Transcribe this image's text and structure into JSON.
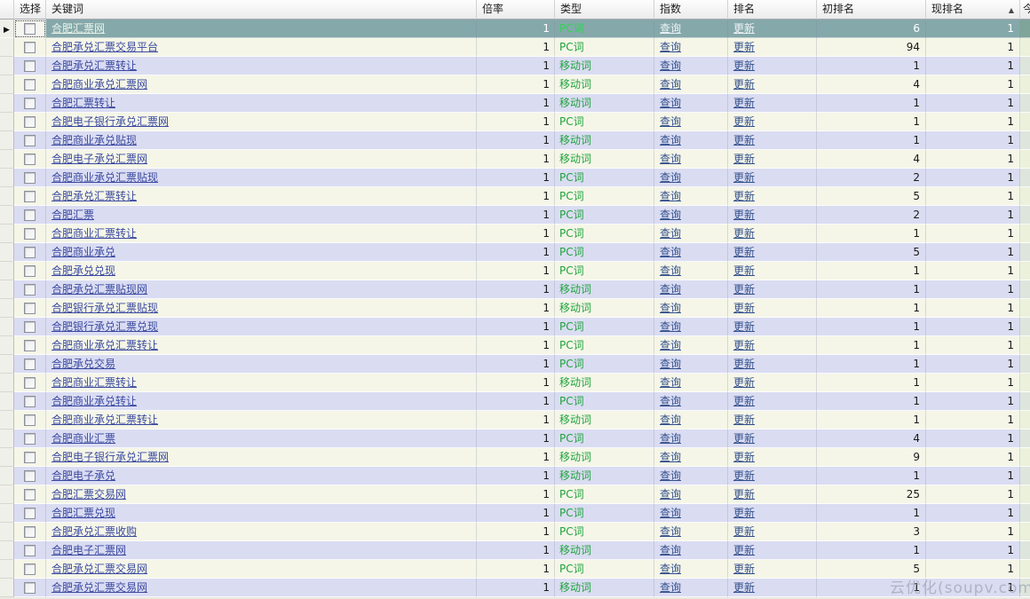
{
  "table": {
    "columns": [
      {
        "key": "select",
        "label": "选择"
      },
      {
        "key": "keyword",
        "label": "关键词"
      },
      {
        "key": "rate",
        "label": "倍率"
      },
      {
        "key": "type",
        "label": "类型"
      },
      {
        "key": "index",
        "label": "指数"
      },
      {
        "key": "rank",
        "label": "排名"
      },
      {
        "key": "init_rank",
        "label": "初排名"
      },
      {
        "key": "cur_rank",
        "label": "现排名"
      },
      {
        "key": "today",
        "label": "今"
      }
    ],
    "sort": {
      "column": "现排名",
      "direction": "ascending",
      "icon": "▲"
    },
    "row_indicator_icon": "▶",
    "rows": [
      {
        "selected": true,
        "keyword": "合肥汇票网",
        "rate": "1",
        "type": "PC词",
        "index_link": "查询",
        "rank_link": "更新",
        "init_rank": "6",
        "cur_rank": "1"
      },
      {
        "selected": false,
        "keyword": "合肥承兑汇票交易平台",
        "rate": "1",
        "type": "PC词",
        "index_link": "查询",
        "rank_link": "更新",
        "init_rank": "94",
        "cur_rank": "1"
      },
      {
        "selected": false,
        "keyword": "合肥承兑汇票转让",
        "rate": "1",
        "type": "移动词",
        "index_link": "查询",
        "rank_link": "更新",
        "init_rank": "1",
        "cur_rank": "1"
      },
      {
        "selected": false,
        "keyword": "合肥商业承兑汇票网",
        "rate": "1",
        "type": "移动词",
        "index_link": "查询",
        "rank_link": "更新",
        "init_rank": "4",
        "cur_rank": "1"
      },
      {
        "selected": false,
        "keyword": "合肥汇票转让",
        "rate": "1",
        "type": "移动词",
        "index_link": "查询",
        "rank_link": "更新",
        "init_rank": "1",
        "cur_rank": "1"
      },
      {
        "selected": false,
        "keyword": "合肥电子银行承兑汇票网",
        "rate": "1",
        "type": "PC词",
        "index_link": "查询",
        "rank_link": "更新",
        "init_rank": "1",
        "cur_rank": "1"
      },
      {
        "selected": false,
        "keyword": "合肥商业承兑贴现",
        "rate": "1",
        "type": "移动词",
        "index_link": "查询",
        "rank_link": "更新",
        "init_rank": "1",
        "cur_rank": "1"
      },
      {
        "selected": false,
        "keyword": "合肥电子承兑汇票网",
        "rate": "1",
        "type": "移动词",
        "index_link": "查询",
        "rank_link": "更新",
        "init_rank": "4",
        "cur_rank": "1"
      },
      {
        "selected": false,
        "keyword": "合肥商业承兑汇票贴现",
        "rate": "1",
        "type": "PC词",
        "index_link": "查询",
        "rank_link": "更新",
        "init_rank": "2",
        "cur_rank": "1"
      },
      {
        "selected": false,
        "keyword": "合肥承兑汇票转让",
        "rate": "1",
        "type": "PC词",
        "index_link": "查询",
        "rank_link": "更新",
        "init_rank": "5",
        "cur_rank": "1"
      },
      {
        "selected": false,
        "keyword": "合肥汇票",
        "rate": "1",
        "type": "PC词",
        "index_link": "查询",
        "rank_link": "更新",
        "init_rank": "2",
        "cur_rank": "1"
      },
      {
        "selected": false,
        "keyword": "合肥商业汇票转让",
        "rate": "1",
        "type": "PC词",
        "index_link": "查询",
        "rank_link": "更新",
        "init_rank": "1",
        "cur_rank": "1"
      },
      {
        "selected": false,
        "keyword": "合肥商业承兑",
        "rate": "1",
        "type": "PC词",
        "index_link": "查询",
        "rank_link": "更新",
        "init_rank": "5",
        "cur_rank": "1"
      },
      {
        "selected": false,
        "keyword": "合肥承兑兑现",
        "rate": "1",
        "type": "PC词",
        "index_link": "查询",
        "rank_link": "更新",
        "init_rank": "1",
        "cur_rank": "1"
      },
      {
        "selected": false,
        "keyword": "合肥承兑汇票贴现网",
        "rate": "1",
        "type": "移动词",
        "index_link": "查询",
        "rank_link": "更新",
        "init_rank": "1",
        "cur_rank": "1"
      },
      {
        "selected": false,
        "keyword": "合肥银行承兑汇票贴现",
        "rate": "1",
        "type": "移动词",
        "index_link": "查询",
        "rank_link": "更新",
        "init_rank": "1",
        "cur_rank": "1"
      },
      {
        "selected": false,
        "keyword": "合肥银行承兑汇票兑现",
        "rate": "1",
        "type": "PC词",
        "index_link": "查询",
        "rank_link": "更新",
        "init_rank": "1",
        "cur_rank": "1"
      },
      {
        "selected": false,
        "keyword": "合肥商业承兑汇票转让",
        "rate": "1",
        "type": "PC词",
        "index_link": "查询",
        "rank_link": "更新",
        "init_rank": "1",
        "cur_rank": "1"
      },
      {
        "selected": false,
        "keyword": "合肥承兑交易",
        "rate": "1",
        "type": "PC词",
        "index_link": "查询",
        "rank_link": "更新",
        "init_rank": "1",
        "cur_rank": "1"
      },
      {
        "selected": false,
        "keyword": "合肥商业汇票转让",
        "rate": "1",
        "type": "移动词",
        "index_link": "查询",
        "rank_link": "更新",
        "init_rank": "1",
        "cur_rank": "1"
      },
      {
        "selected": false,
        "keyword": "合肥商业承兑转让",
        "rate": "1",
        "type": "PC词",
        "index_link": "查询",
        "rank_link": "更新",
        "init_rank": "1",
        "cur_rank": "1"
      },
      {
        "selected": false,
        "keyword": "合肥商业承兑汇票转让",
        "rate": "1",
        "type": "移动词",
        "index_link": "查询",
        "rank_link": "更新",
        "init_rank": "1",
        "cur_rank": "1"
      },
      {
        "selected": false,
        "keyword": "合肥商业汇票",
        "rate": "1",
        "type": "PC词",
        "index_link": "查询",
        "rank_link": "更新",
        "init_rank": "4",
        "cur_rank": "1"
      },
      {
        "selected": false,
        "keyword": "合肥电子银行承兑汇票网",
        "rate": "1",
        "type": "移动词",
        "index_link": "查询",
        "rank_link": "更新",
        "init_rank": "9",
        "cur_rank": "1"
      },
      {
        "selected": false,
        "keyword": "合肥电子承兑",
        "rate": "1",
        "type": "移动词",
        "index_link": "查询",
        "rank_link": "更新",
        "init_rank": "1",
        "cur_rank": "1"
      },
      {
        "selected": false,
        "keyword": "合肥汇票交易网",
        "rate": "1",
        "type": "PC词",
        "index_link": "查询",
        "rank_link": "更新",
        "init_rank": "25",
        "cur_rank": "1"
      },
      {
        "selected": false,
        "keyword": "合肥汇票兑现",
        "rate": "1",
        "type": "PC词",
        "index_link": "查询",
        "rank_link": "更新",
        "init_rank": "1",
        "cur_rank": "1"
      },
      {
        "selected": false,
        "keyword": "合肥承兑汇票收购",
        "rate": "1",
        "type": "PC词",
        "index_link": "查询",
        "rank_link": "更新",
        "init_rank": "3",
        "cur_rank": "1"
      },
      {
        "selected": false,
        "keyword": "合肥电子汇票网",
        "rate": "1",
        "type": "移动词",
        "index_link": "查询",
        "rank_link": "更新",
        "init_rank": "1",
        "cur_rank": "1"
      },
      {
        "selected": false,
        "keyword": "合肥承兑汇票交易网",
        "rate": "1",
        "type": "PC词",
        "index_link": "查询",
        "rank_link": "更新",
        "init_rank": "5",
        "cur_rank": "1"
      },
      {
        "selected": false,
        "keyword": "合肥承兑汇票交易网",
        "rate": "1",
        "type": "移动词",
        "index_link": "查询",
        "rank_link": "更新",
        "init_rank": "1",
        "cur_rank": "1"
      }
    ]
  },
  "watermark": {
    "text": "云优化(soupv.com)"
  },
  "colors": {
    "row_odd": "#dadcf2",
    "row_even": "#f5f6e7",
    "row_selected": "#85a8aa",
    "keyword_link": "#3a49a0",
    "action_link": "#33508c",
    "type_green": "#1fa33c"
  }
}
